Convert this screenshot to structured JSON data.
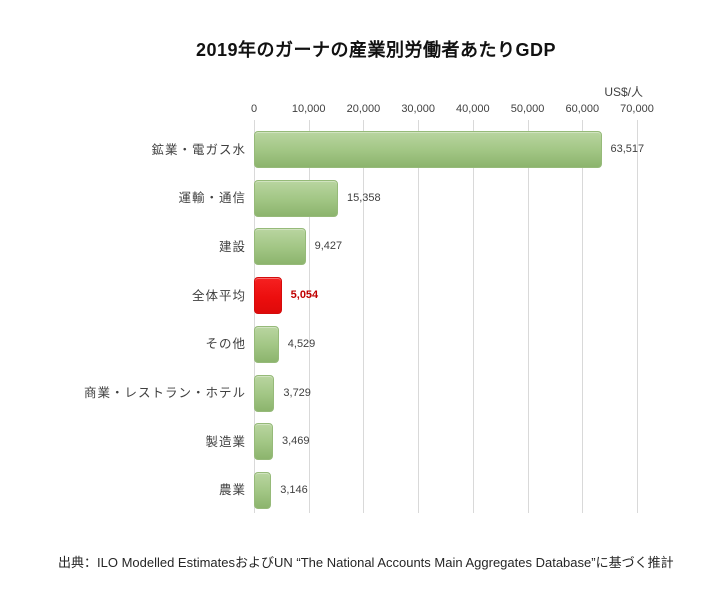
{
  "title": "2019年のガーナの産業別労働者あたりGDP",
  "unit_label": "US$/人",
  "source": "出典：ILO Modelled EstimatesおよびUN “The National Accounts Main Aggregates Database”に基づく推計",
  "chart_data": {
    "type": "bar",
    "orientation": "horizontal",
    "title": "2019年のガーナの産業別労働者あたりGDP",
    "categories": [
      "鉱業・電ガス水",
      "運輸・通信",
      "建設",
      "全体平均",
      "その他",
      "商業・レストラン・ホテル",
      "製造業",
      "農業"
    ],
    "values": [
      63517,
      15358,
      9427,
      5054,
      4529,
      3729,
      3469,
      3146
    ],
    "value_labels": [
      "63,517",
      "15,358",
      "9,427",
      "5,054",
      "4,529",
      "3,729",
      "3,469",
      "3,146"
    ],
    "highlight_index": 3,
    "xlabel": "US$/人",
    "xlim": [
      0,
      70000
    ],
    "xticks": [
      0,
      10000,
      20000,
      30000,
      40000,
      50000,
      60000,
      70000
    ],
    "xtick_labels": [
      "0",
      "10,000",
      "20,000",
      "30,000",
      "40,000",
      "50,000",
      "60,000",
      "70,000"
    ],
    "grid": true,
    "legend": false,
    "colors": {
      "bar": "#9cc27e",
      "highlight_bar": "#ee1111",
      "highlight_text": "#c00000",
      "gridline": "#d9d9d9",
      "text": "#404040"
    }
  }
}
